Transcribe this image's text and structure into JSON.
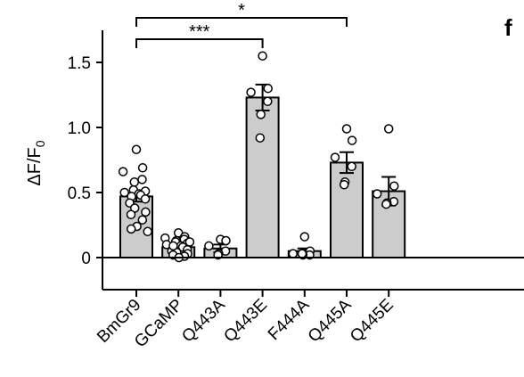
{
  "panel_label": "f",
  "chart_data": {
    "type": "bar",
    "ylabel": {
      "prefix": "ΔF/F",
      "subscript": "0"
    },
    "ylim": [
      -0.25,
      1.75
    ],
    "yticks": [
      0,
      0.5,
      1.0,
      1.5
    ],
    "ytick_labels": [
      "0",
      "0.5",
      "1.0",
      "1.5"
    ],
    "categories": [
      "BmGr9",
      "GCaMP",
      "Q443A",
      "Q443E",
      "F444A",
      "Q445A",
      "Q445E"
    ],
    "values": [
      0.47,
      0.08,
      0.07,
      1.23,
      0.05,
      0.73,
      0.51
    ],
    "errors": [
      0.04,
      0.02,
      0.03,
      0.1,
      0.02,
      0.08,
      0.11
    ],
    "points": [
      [
        0.83,
        0.69,
        0.66,
        0.6,
        0.58,
        0.52,
        0.51,
        0.5,
        0.49,
        0.48,
        0.47,
        0.45,
        0.42,
        0.38,
        0.35,
        0.33,
        0.29,
        0.24,
        0.22,
        0.2
      ],
      [
        0.19,
        0.16,
        0.15,
        0.14,
        0.13,
        0.12,
        0.11,
        0.1,
        0.09,
        0.08,
        0.07,
        0.06,
        0.05,
        0.04,
        0.03,
        0.02,
        0.01,
        0.0,
        0.09,
        0.12
      ],
      [
        0.14,
        0.13,
        0.09,
        0.05,
        0.03,
        0.02
      ],
      [
        1.55,
        1.3,
        1.27,
        1.2,
        1.1,
        0.92
      ],
      [
        0.16,
        0.05,
        0.03,
        0.02,
        0.02,
        0.03
      ],
      [
        0.99,
        0.9,
        0.77,
        0.7,
        0.58,
        0.56
      ],
      [
        0.99,
        0.55,
        0.49,
        0.43,
        0.42,
        0.41
      ]
    ],
    "significance": [
      {
        "from": "BmGr9",
        "to": "Q445A",
        "label": "*"
      },
      {
        "from": "BmGr9",
        "to": "Q443E",
        "label": "***"
      }
    ]
  }
}
